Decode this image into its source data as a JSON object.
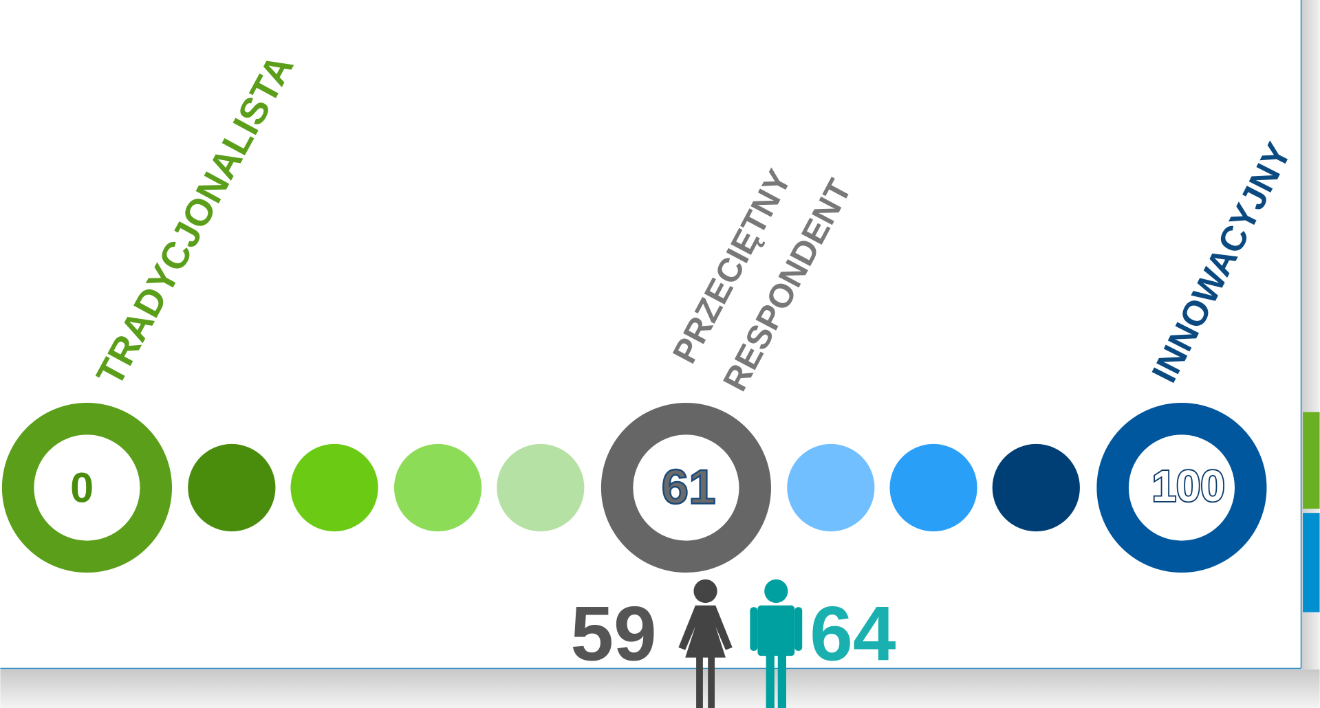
{
  "labels": {
    "left": "TRADYCJONALISTA",
    "middle": [
      "PRZECIĘTNY",
      "RESPONDENT"
    ],
    "right": "INNOWACYJNY"
  },
  "scale": {
    "min": 0,
    "average": 61,
    "max": 100
  },
  "gender": {
    "female": 59,
    "male": 64
  }
}
